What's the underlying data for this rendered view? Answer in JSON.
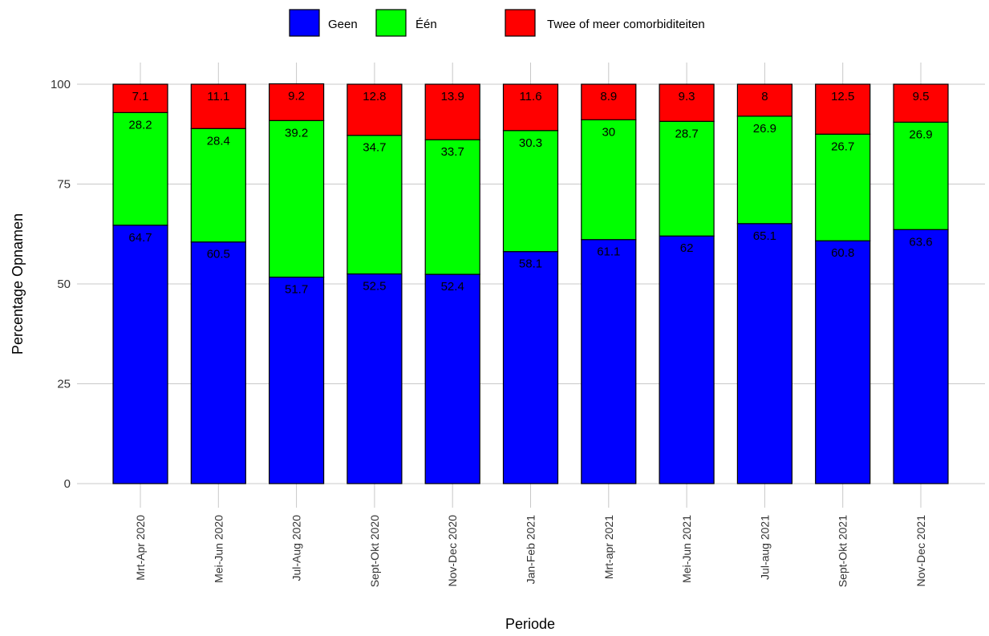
{
  "chart_data": {
    "type": "bar",
    "stacked": true,
    "categories": [
      "Mrt-Apr 2020",
      "Mei-Jun 2020",
      "Jul-Aug 2020",
      "Sept-Okt 2020",
      "Nov-Dec 2020",
      "Jan-Feb 2021",
      "Mrt-apr 2021",
      "Mei-Jun 2021",
      "Jul-aug 2021",
      "Sept-Okt 2021",
      "Nov-Dec 2021"
    ],
    "series": [
      {
        "name": "Geen",
        "color": "#0000ff",
        "values": [
          64.7,
          60.5,
          51.7,
          52.5,
          52.4,
          58.1,
          61.1,
          62,
          65.1,
          60.8,
          63.6
        ]
      },
      {
        "name": "Één",
        "color": "#00ff00",
        "values": [
          28.2,
          28.4,
          39.2,
          34.7,
          33.7,
          30.3,
          30,
          28.7,
          26.9,
          26.7,
          26.9
        ]
      },
      {
        "name": "Twee of meer comorbiditeiten",
        "color": "#ff0000",
        "values": [
          7.1,
          11.1,
          9.2,
          12.8,
          13.9,
          11.6,
          8.9,
          9.3,
          8,
          12.5,
          9.5
        ]
      }
    ],
    "xlabel": "Periode",
    "ylabel": "Percentage Opnamen",
    "ylim": [
      0,
      100
    ],
    "yticks": [
      0,
      25,
      50,
      75,
      100
    ],
    "grid": true,
    "legend_position": "top"
  }
}
